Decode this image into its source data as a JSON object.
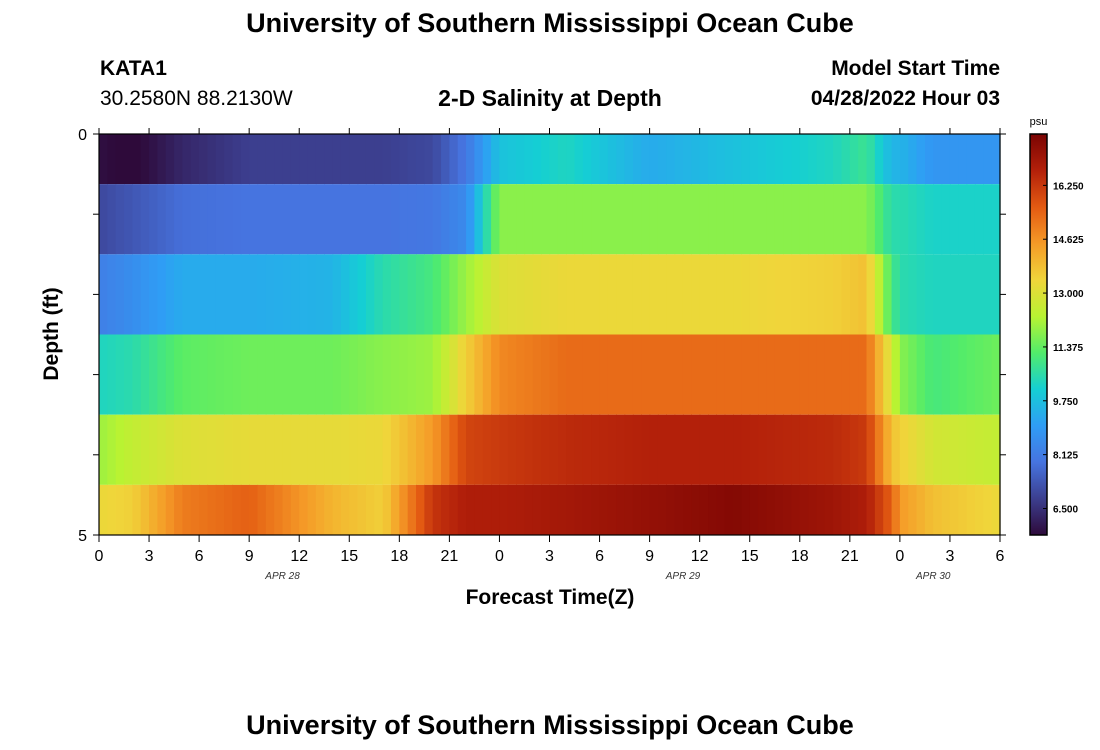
{
  "page_title": "University of Southern Mississippi Ocean Cube",
  "station": {
    "id": "KATA1",
    "coords": "30.2580N  88.2130W"
  },
  "plot_title": "2-D Salinity at Depth",
  "model_start": {
    "label": "Model Start Time",
    "value": "04/28/2022 Hour 03"
  },
  "footer_title": "University of Southern Mississippi Ocean Cube",
  "chart_data": {
    "type": "heatmap",
    "title": "2-D Salinity at Depth",
    "xlabel": "Forecast Time(Z)",
    "ylabel": "Depth (ft)",
    "x_ticks": [
      "0",
      "3",
      "6",
      "9",
      "12",
      "15",
      "18",
      "21",
      "0",
      "3",
      "6",
      "9",
      "12",
      "15",
      "18",
      "21",
      "0",
      "3",
      "6"
    ],
    "x_day_labels": [
      {
        "label": "APR 28",
        "hour": 11
      },
      {
        "label": "APR 29",
        "hour": 35
      },
      {
        "label": "APR 30",
        "hour": 50
      }
    ],
    "x_range_hours": [
      0,
      54
    ],
    "y_range_ft": [
      0,
      5
    ],
    "y_tick_labels": [
      "0",
      "5"
    ],
    "depth_layers_ft": [
      0.25,
      1.0,
      2.0,
      3.0,
      4.0,
      4.75
    ],
    "time_nodes_hours": [
      0,
      2,
      5,
      9,
      14,
      17,
      20,
      22,
      24,
      28,
      33,
      38,
      44,
      46,
      47.5,
      48,
      50,
      54
    ],
    "salinity_psu": [
      [
        5.8,
        5.6,
        6.3,
        6.8,
        6.8,
        6.8,
        7.0,
        8.0,
        9.8,
        10.3,
        9.3,
        9.8,
        10.3,
        10.8,
        9.5,
        9.5,
        8.8,
        8.8
      ],
      [
        7.0,
        7.3,
        7.8,
        7.9,
        7.9,
        7.9,
        8.0,
        8.5,
        11.8,
        11.8,
        11.8,
        11.8,
        11.8,
        11.8,
        10.5,
        10.5,
        10.2,
        10.2
      ],
      [
        8.2,
        8.6,
        9.3,
        9.3,
        9.5,
        10.5,
        11.0,
        12.0,
        13.0,
        13.3,
        13.3,
        13.3,
        13.5,
        13.8,
        11.0,
        10.5,
        10.3,
        10.3
      ],
      [
        10.3,
        10.5,
        11.3,
        11.5,
        11.5,
        11.8,
        12.0,
        13.5,
        14.8,
        15.3,
        15.3,
        15.3,
        15.3,
        15.3,
        12.8,
        11.8,
        11.0,
        11.5
      ],
      [
        12.0,
        12.5,
        13.0,
        13.2,
        13.2,
        13.3,
        14.5,
        16.0,
        16.2,
        16.5,
        16.7,
        16.7,
        16.5,
        16.2,
        13.8,
        13.5,
        12.8,
        12.5
      ],
      [
        13.3,
        13.5,
        15.0,
        15.5,
        14.0,
        13.5,
        16.3,
        16.8,
        16.8,
        17.0,
        17.3,
        17.6,
        17.1,
        16.8,
        15.5,
        14.5,
        13.8,
        13.3
      ]
    ],
    "colorbar": {
      "unit": "psu",
      "range": [
        5.7,
        17.8
      ],
      "ticks": [
        "16.250",
        "14.625",
        "13.000",
        "11.375",
        "9.750",
        "8.125",
        "6.500"
      ],
      "colors": [
        "#2e0a3a",
        "#3c3f8f",
        "#4674e0",
        "#2f9df5",
        "#15cfd3",
        "#52ec6a",
        "#b8f332",
        "#f0d53a",
        "#f59a27",
        "#e35a12",
        "#b3200a",
        "#7a0403"
      ]
    }
  }
}
